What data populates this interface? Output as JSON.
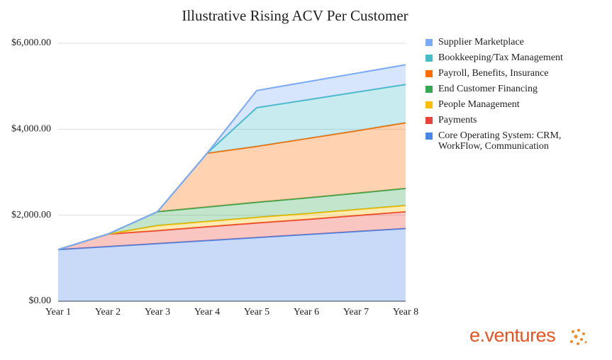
{
  "chart_data": {
    "type": "stacked_area",
    "title": "Illustrative Rising ACV Per Customer",
    "categories": [
      "Year 1",
      "Year 2",
      "Year 3",
      "Year 4",
      "Year 5",
      "Year 6",
      "Year 7",
      "Year 8"
    ],
    "series": [
      {
        "name": "Core Operating System: CRM, WorkFlow, Communication",
        "color": "#4a86e8",
        "values": [
          1200,
          1270,
          1340,
          1410,
          1480,
          1550,
          1620,
          1690
        ]
      },
      {
        "name": "Payments",
        "color": "#ea4335",
        "values": [
          0,
          290,
          300,
          320,
          340,
          350,
          370,
          390
        ]
      },
      {
        "name": "People Management",
        "color": "#fbbc04",
        "values": [
          0,
          0,
          120,
          125,
          130,
          135,
          140,
          145
        ]
      },
      {
        "name": "End Customer Financing",
        "color": "#34a853",
        "values": [
          0,
          0,
          320,
          335,
          350,
          365,
          380,
          395
        ]
      },
      {
        "name": "Payroll, Benefits, Insurance",
        "color": "#ff6d01",
        "values": [
          0,
          0,
          0,
          1250,
          1300,
          1380,
          1450,
          1530
        ]
      },
      {
        "name": "Bookkeeping/Tax Management",
        "color": "#46bdc6",
        "values": [
          0,
          0,
          0,
          0,
          900,
          900,
          900,
          890
        ]
      },
      {
        "name": "Supplier Marketplace",
        "color": "#7baaf7",
        "values": [
          0,
          0,
          0,
          0,
          400,
          420,
          440,
          460
        ]
      }
    ],
    "ylim": [
      0,
      6000
    ],
    "yticks": [
      {
        "value": 0,
        "label": "$0.00"
      },
      {
        "value": 2000,
        "label": "$2,000.00"
      },
      {
        "value": 4000,
        "label": "$4,000.00"
      },
      {
        "value": 6000,
        "label": "$6,000.00"
      }
    ],
    "grid": true,
    "legend": "right"
  },
  "logo": "e.ventures"
}
